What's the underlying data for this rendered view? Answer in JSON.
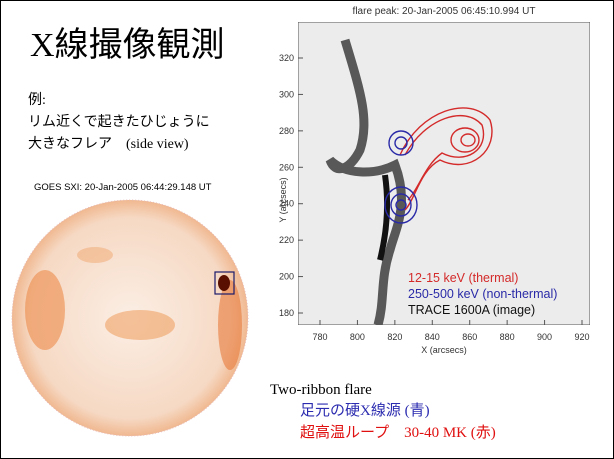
{
  "slide": {
    "title": "X線撮像観測",
    "example": {
      "label": "例:",
      "lines": [
        "リム近くで起きたひじょうに",
        "大きなフレア　(side view)"
      ]
    },
    "goes_caption": "GOES SXI:  20-Jan-2005 06:44:29.148 UT",
    "figure": {
      "title": "flare peak:  20-Jan-2005 06:45:10.994 UT",
      "xlabel": "X (arcsecs)",
      "ylabel": "Y (arcsecs)",
      "xticks": [
        780,
        800,
        820,
        840,
        860,
        880,
        900,
        920
      ],
      "yticks": [
        180,
        200,
        220,
        240,
        260,
        280,
        300,
        320
      ],
      "legend": [
        {
          "text": "12-15 keV (thermal)",
          "color": "#d42a2a"
        },
        {
          "text": "250-500 keV (non-thermal)",
          "color": "#2a2aa8"
        },
        {
          "text": "TRACE 1600A (image)",
          "color": "#111111"
        }
      ]
    },
    "notes": {
      "heading": "Two-ribbon flare",
      "lines": [
        {
          "text": "足元の硬X線源 (青)",
          "color": "#2b2bb0"
        },
        {
          "text": "超高温ループ　30-40 MK (赤)",
          "color": "#e01010"
        }
      ]
    }
  }
}
